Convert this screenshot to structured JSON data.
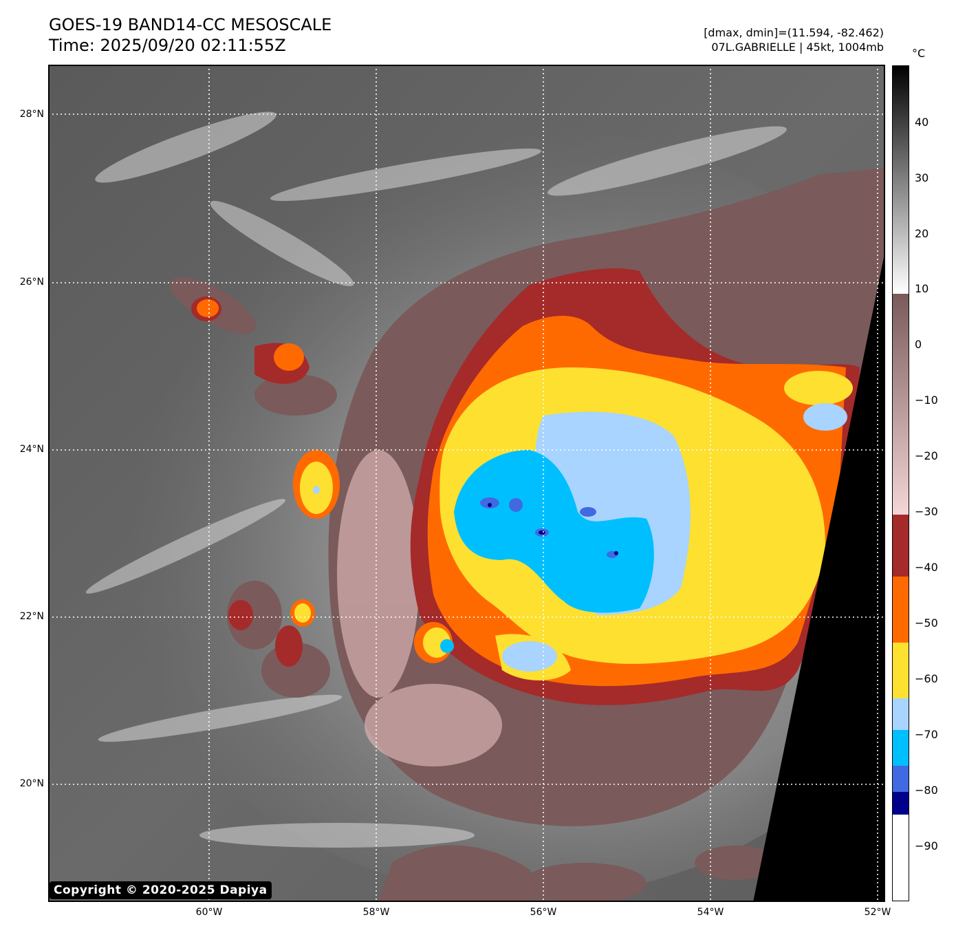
{
  "header": {
    "title_line1": "GOES-19 BAND14-CC MESOSCALE",
    "title_line2": "Time: 2025/09/20 02:11:55Z",
    "info_line1": "[dmax, dmin]=(11.594, -82.462)",
    "info_line2": "07L.GABRIELLE | 45kt, 1004mb"
  },
  "map": {
    "lat_labels": [
      "28°N",
      "26°N",
      "24°N",
      "22°N",
      "20°N"
    ],
    "lon_labels": [
      "60°W",
      "58°W",
      "56°W",
      "54°W",
      "52°W"
    ]
  },
  "colorbar": {
    "unit": "°C",
    "ticks": [
      "40",
      "30",
      "20",
      "10",
      "0",
      "−10",
      "−20",
      "−30",
      "−40",
      "−50",
      "−60",
      "−70",
      "−80",
      "−90"
    ],
    "colors": {
      "warm_black": "#000000",
      "gray": "#808080",
      "white": "#ffffff",
      "brown": "#7a5a5a",
      "pink": "#f5d6d6",
      "dark_red": "#a52a2a",
      "orange": "#ff6a00",
      "yellow": "#fde030",
      "light_blue": "#a8d4ff",
      "deep_sky": "#00bfff",
      "royal_blue": "#4169e1",
      "navy": "#00008b"
    }
  },
  "footer": {
    "copyright": "Copyright © 2020-2025 Dapiya"
  }
}
